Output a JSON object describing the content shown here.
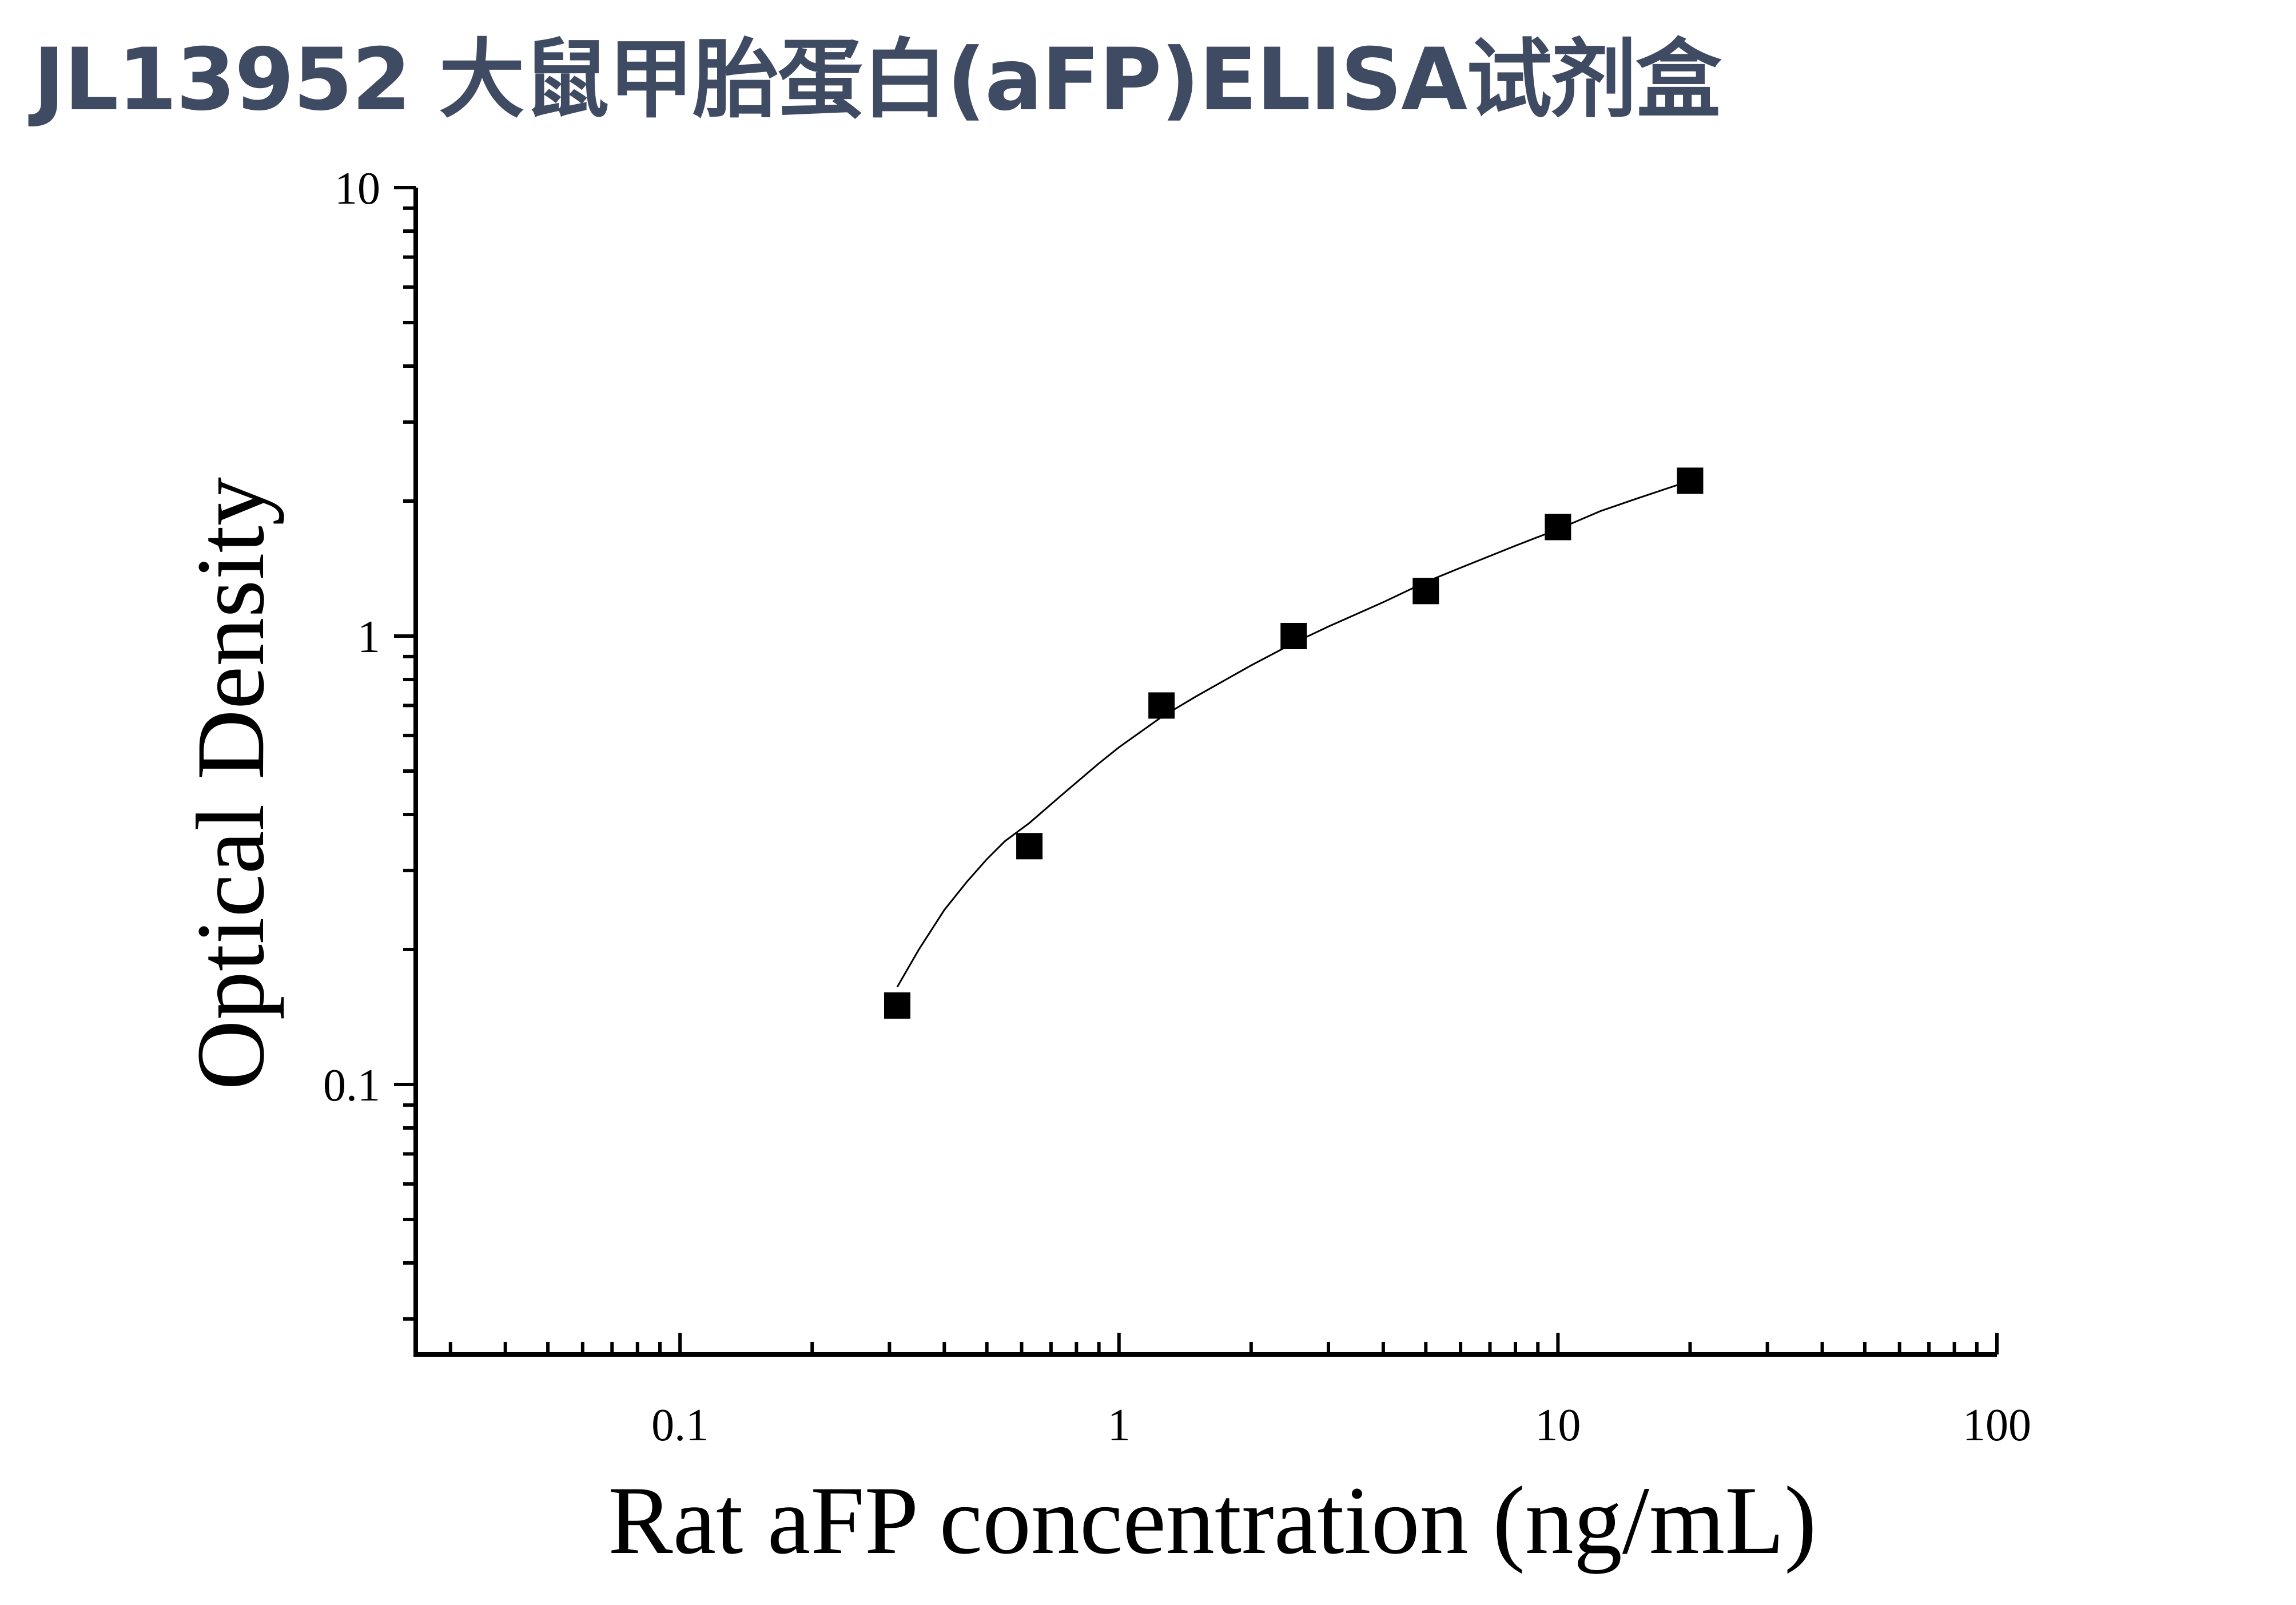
{
  "title": "JL13952 大鼠甲胎蛋白(aFP)ELISA试剂盒",
  "chart_data": {
    "type": "scatter",
    "title": "JL13952 大鼠甲胎蛋白(aFP)ELISA试剂盒",
    "xlabel": "Rat aFP concentration (ng/mL)",
    "ylabel": "Optical Density",
    "x_scale": "log",
    "y_scale": "log",
    "xlim": [
      0.025,
      100
    ],
    "ylim": [
      0.025,
      10
    ],
    "x_ticks": [
      {
        "value": 0.1,
        "label": "0.1"
      },
      {
        "value": 1,
        "label": "1"
      },
      {
        "value": 10,
        "label": "10"
      },
      {
        "value": 100,
        "label": "100"
      }
    ],
    "y_ticks": [
      {
        "value": 0.1,
        "label": "0.1"
      },
      {
        "value": 1,
        "label": "1"
      },
      {
        "value": 10,
        "label": "10"
      }
    ],
    "grid": false,
    "series": [
      {
        "marker": "square",
        "color": "#000000",
        "x": [
          0.3125,
          0.625,
          1.25,
          2.5,
          5,
          10,
          20
        ],
        "y": [
          0.15,
          0.34,
          0.7,
          1.0,
          1.26,
          1.75,
          2.22
        ]
      }
    ],
    "fit_curve": {
      "type": "curve",
      "color": "#000000",
      "x": [
        0.3125,
        0.35,
        0.4,
        0.45,
        0.5,
        0.55,
        0.625,
        0.75,
        0.9,
        1.0,
        1.25,
        1.5,
        2.0,
        2.5,
        3.0,
        4.0,
        5.0,
        6.0,
        8.0,
        10.0,
        12.5,
        15.0,
        20.0
      ],
      "y": [
        0.165,
        0.2,
        0.245,
        0.283,
        0.318,
        0.349,
        0.383,
        0.447,
        0.52,
        0.565,
        0.66,
        0.734,
        0.86,
        0.965,
        1.05,
        1.19,
        1.32,
        1.42,
        1.59,
        1.73,
        1.9,
        2.02,
        2.22
      ]
    }
  }
}
